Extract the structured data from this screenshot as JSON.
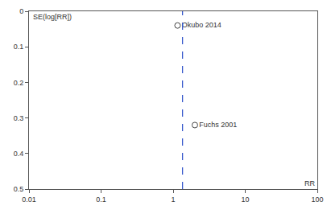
{
  "chart_data": {
    "type": "scatter",
    "x_label": "RR",
    "y_label": "SE(log[RR])",
    "log": "x",
    "xlim": [
      0.01,
      100
    ],
    "xticks": [
      0.01,
      0.1,
      1,
      10,
      100
    ],
    "ylim": [
      0,
      0.5
    ],
    "yticks": [
      0,
      0.1,
      0.2,
      0.3,
      0.4,
      0.5
    ],
    "series": [
      {
        "x": [
          1.15,
          2.0
        ],
        "values": [
          0.04,
          0.32
        ],
        "labels": [
          "Okubo 2014",
          "Fuchs 2001"
        ],
        "marker": "circle-open",
        "color": "#444444"
      }
    ],
    "reference_line": {
      "value": 1.35,
      "color": "#3355cc",
      "line_style": "dash"
    }
  }
}
